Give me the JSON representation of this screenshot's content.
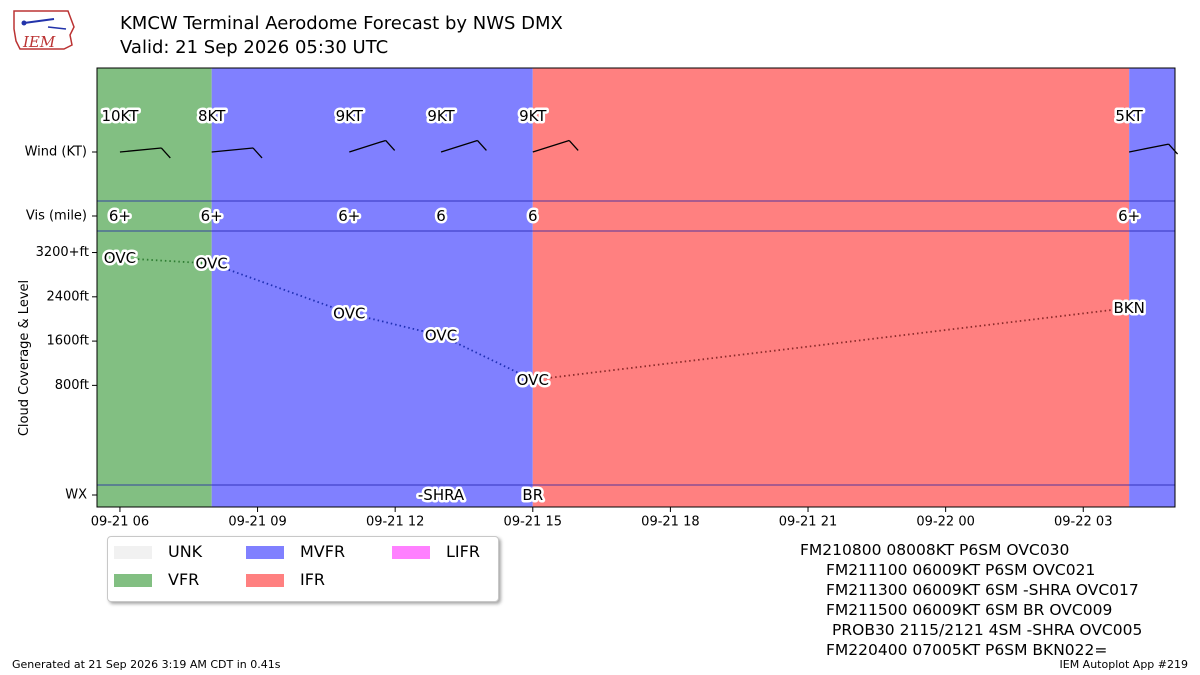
{
  "header": {
    "title": "KMCW Terminal Aerodome Forecast by NWS DMX",
    "subtitle": "Valid: 21 Sep 2026 05:30 UTC",
    "logo_text": "IEM"
  },
  "chart_data": {
    "type": "timeline",
    "row_labels": {
      "wind": "Wind (KT)",
      "vis": "Vis (mile)",
      "cloud": "Cloud Coverage & Level",
      "wx": "WX"
    },
    "x_ticks": [
      "09-21 06",
      "09-21 09",
      "09-21 12",
      "09-21 15",
      "09-21 18",
      "09-21 21",
      "09-22 00",
      "09-22 03"
    ],
    "x_tick_hours": [
      6,
      9,
      12,
      15,
      18,
      21,
      24,
      27
    ],
    "x_range_hours": [
      5.5,
      29
    ],
    "y_cloud_ticks": [
      {
        "label": "800ft",
        "value": 800
      },
      {
        "label": "1600ft",
        "value": 1600
      },
      {
        "label": "2400ft",
        "value": 2400
      },
      {
        "label": "3200+ft",
        "value": 3200
      }
    ],
    "y_cloud_range": [
      -1000,
      3300
    ],
    "categories": [
      {
        "start": 5.5,
        "end": 8,
        "category": "VFR"
      },
      {
        "start": 8,
        "end": 15,
        "category": "MVFR"
      },
      {
        "start": 15,
        "end": 28,
        "category": "IFR"
      },
      {
        "start": 28,
        "end": 29,
        "category": "MVFR"
      }
    ],
    "forecasts": [
      {
        "hour": 6,
        "wind_label": "10KT",
        "wind_dir": 80,
        "vis": "6+",
        "cloud": "OVC",
        "cloud_ft": 3100,
        "wx": ""
      },
      {
        "hour": 8,
        "wind_label": "8KT",
        "wind_dir": 80,
        "vis": "6+",
        "cloud": "OVC",
        "cloud_ft": 3000,
        "wx": ""
      },
      {
        "hour": 11,
        "wind_label": "9KT",
        "wind_dir": 60,
        "vis": "6+",
        "cloud": "OVC",
        "cloud_ft": 2100,
        "wx": ""
      },
      {
        "hour": 13,
        "wind_label": "9KT",
        "wind_dir": 60,
        "vis": "6",
        "cloud": "OVC",
        "cloud_ft": 1700,
        "wx": "-SHRA"
      },
      {
        "hour": 15,
        "wind_label": "9KT",
        "wind_dir": 60,
        "vis": "6",
        "cloud": "OVC",
        "cloud_ft": 900,
        "wx": "BR"
      },
      {
        "hour": 28,
        "wind_label": "5KT",
        "wind_dir": 70,
        "vis": "6+",
        "cloud": "BKN",
        "cloud_ft": 2200,
        "wx": ""
      }
    ],
    "dotted_segments": [
      [
        0,
        1,
        "green"
      ],
      [
        1,
        4,
        "blue"
      ],
      [
        4,
        5,
        "red"
      ]
    ]
  },
  "legend": [
    {
      "label": "UNK",
      "color": "#f1f1f1"
    },
    {
      "label": "VFR",
      "color": "#82bf82"
    },
    {
      "label": "MVFR",
      "color": "#8080ff"
    },
    {
      "label": "IFR",
      "color": "#ff8080"
    },
    {
      "label": "LIFR",
      "color": "#ff80ff"
    }
  ],
  "colors": {
    "VFR": "#82bf82",
    "MVFR": "#8080ff",
    "IFR": "#ff8080",
    "green": "#2e7d32",
    "blue": "#1f2fb3",
    "red": "#8b2a2a"
  },
  "taf_text": [
    "FM210800 08008KT P6SM OVC030",
    "FM211100 06009KT P6SM OVC021",
    "FM211300 06009KT 6SM -SHRA OVC017",
    "FM211500 06009KT 6SM BR OVC009",
    "PROB30 2115/2121 4SM -SHRA OVC005",
    "FM220400 07005KT P6SM BKN022="
  ],
  "footer": {
    "left": "Generated at 21 Sep 2026 3:19 AM CDT in 0.41s",
    "right": "IEM Autoplot App #219"
  }
}
